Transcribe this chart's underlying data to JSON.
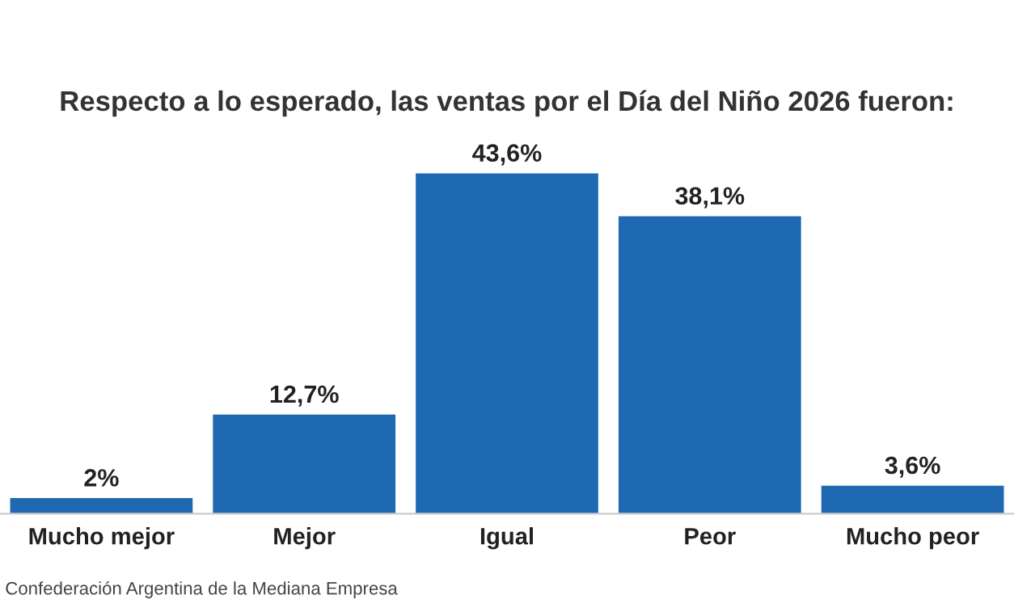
{
  "chart_data": {
    "type": "bar",
    "title": "Respecto a lo esperado, las ventas por el Día del Niño 2026 fueron:",
    "categories": [
      "Mucho mejor",
      "Mejor",
      "Igual",
      "Peor",
      "Mucho peor"
    ],
    "values": [
      2,
      12.7,
      43.6,
      38.1,
      3.6
    ],
    "value_labels": [
      "2%",
      "12,7%",
      "43,6%",
      "38,1%",
      "3,6%"
    ],
    "color": "#1f69b3",
    "grid": false,
    "annotations": [
      "Confederación Argentina de la Mediana Empresa"
    ]
  }
}
